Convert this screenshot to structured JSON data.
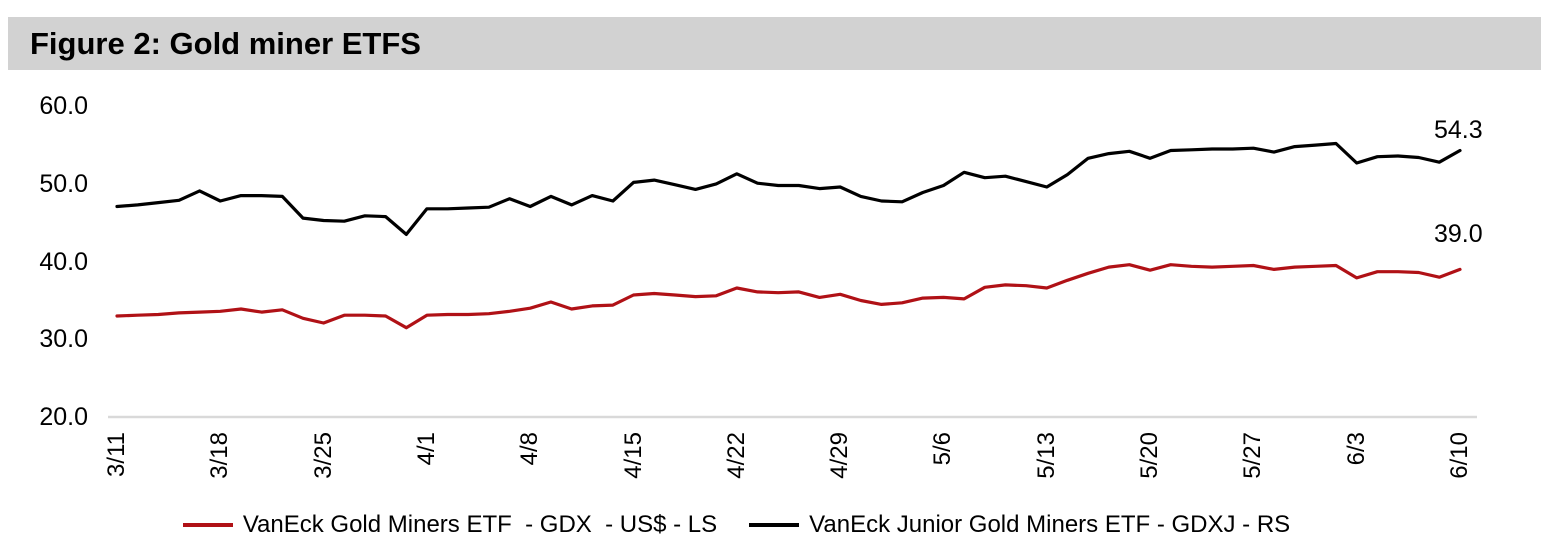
{
  "figure": {
    "title": "Figure 2: Gold miner ETFS"
  },
  "chart_data": {
    "type": "line",
    "title": "Figure 2: Gold miner ETFS",
    "x_tick_labels": [
      "3/11",
      "3/18",
      "3/25",
      "4/1",
      "4/8",
      "4/15",
      "4/22",
      "4/29",
      "5/6",
      "5/13",
      "5/20",
      "5/27",
      "6/3",
      "6/10"
    ],
    "y_tick_labels": [
      "60.0",
      "50.0",
      "40.0",
      "30.0",
      "20.0"
    ],
    "ylim": [
      20,
      60
    ],
    "grid": false,
    "legend_position": "bottom",
    "points_per_week": 5,
    "series": [
      {
        "name": "VanEck Gold Miners ETF  - GDX  - US$ - LS",
        "color": "#b01116",
        "end_label": "39.0",
        "values": [
          33.0,
          33.1,
          33.2,
          33.4,
          33.5,
          33.6,
          33.9,
          33.5,
          33.8,
          32.7,
          32.1,
          33.1,
          33.1,
          33.0,
          31.5,
          33.1,
          33.2,
          33.2,
          33.3,
          33.6,
          34.0,
          34.8,
          33.9,
          34.3,
          34.4,
          35.7,
          35.9,
          35.7,
          35.5,
          35.6,
          36.6,
          36.1,
          36.0,
          36.1,
          35.4,
          35.8,
          35.0,
          34.5,
          34.7,
          35.3,
          35.4,
          35.2,
          36.7,
          37.0,
          36.9,
          36.6,
          37.6,
          38.5,
          39.3,
          39.6,
          38.9,
          39.6,
          39.4,
          39.3,
          39.4,
          39.5,
          39.0,
          39.3,
          39.4,
          39.5,
          37.9,
          38.7,
          38.7,
          38.6,
          38.0,
          39.0
        ]
      },
      {
        "name": "VanEck Junior Gold Miners ETF - GDXJ - RS",
        "color": "#000000",
        "end_label": "54.3",
        "values": [
          47.1,
          47.3,
          47.6,
          47.9,
          49.1,
          47.8,
          48.5,
          48.5,
          48.4,
          45.6,
          45.3,
          45.2,
          45.9,
          45.8,
          43.5,
          46.8,
          46.8,
          46.9,
          47.0,
          48.1,
          47.1,
          48.4,
          47.3,
          48.5,
          47.8,
          50.2,
          50.5,
          49.9,
          49.3,
          50.0,
          51.3,
          50.1,
          49.8,
          49.8,
          49.4,
          49.6,
          48.4,
          47.8,
          47.7,
          48.9,
          49.8,
          51.5,
          50.8,
          51.0,
          50.3,
          49.6,
          51.2,
          53.3,
          53.9,
          54.2,
          53.3,
          54.3,
          54.4,
          54.5,
          54.5,
          54.6,
          54.1,
          54.8,
          55.0,
          55.2,
          52.7,
          53.5,
          53.6,
          53.4,
          52.8,
          54.3
        ]
      }
    ]
  }
}
